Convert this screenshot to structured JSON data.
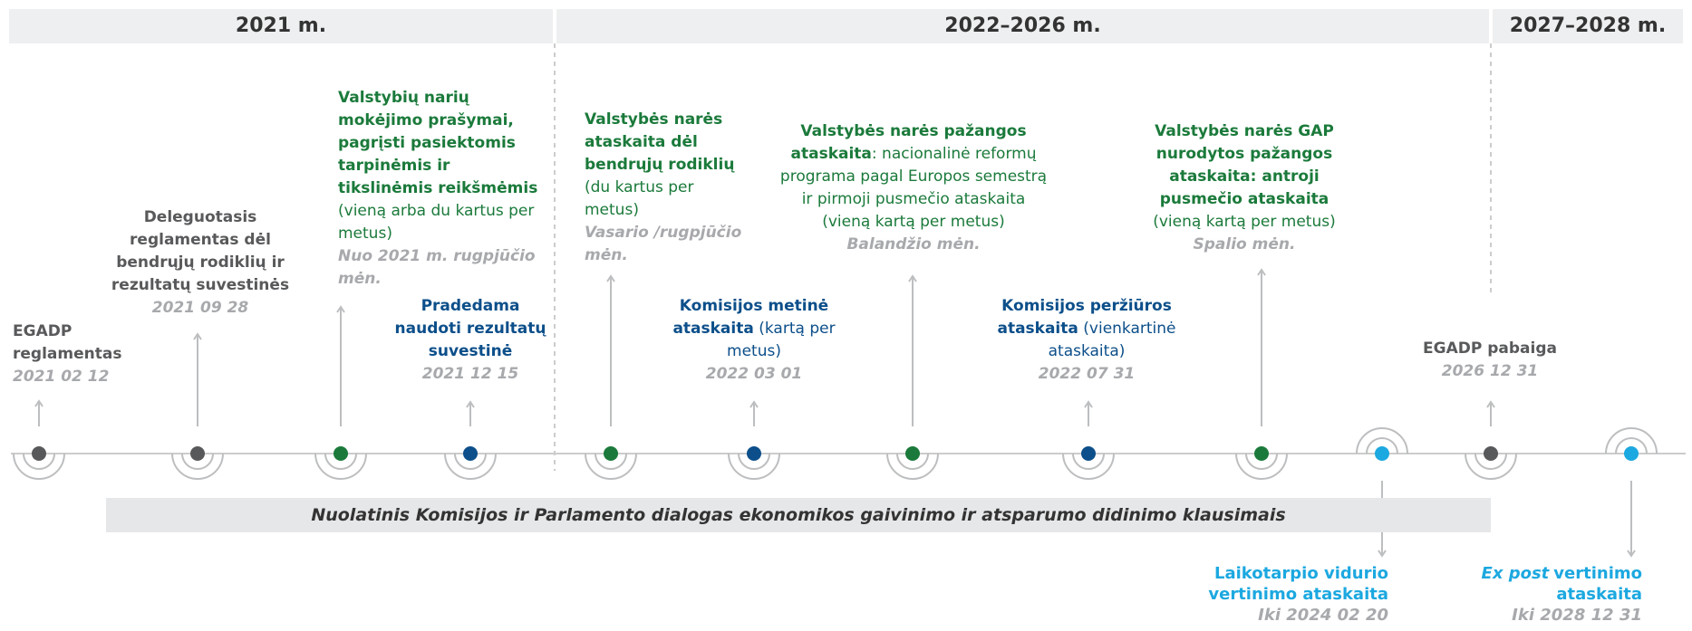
{
  "header": {
    "periods": [
      "2021 m.",
      "2022–2026 m.",
      "2027–2028 m."
    ]
  },
  "dialogue": "Nuolatinis Komisijos ir Parlamento dialogas ekonomikos gaivinimo ir atsparumo didinimo klausimais",
  "events": [
    {
      "title": "EGADP reglamentas",
      "date": "2021 02 12",
      "color": "#58595b"
    },
    {
      "title": "Deleguotasis reglamentas dėl bendrųjų rodiklių ir rezultatų suvestinės",
      "date": "2021 09 28",
      "color": "#58595b"
    },
    {
      "title": "Valstybių narių mokėjimo prašymai, pagrįsti pasiektomis tarpinėmis ir tikslinėmis reikšmėmis",
      "note": "(vieną arba du kartus per metus)",
      "date": "Nuo 2021 m. rugpjūčio mėn.",
      "color": "#1b7a3b"
    },
    {
      "title": "Pradedama naudoti rezultatų suvestinė",
      "date": "2021 12 15",
      "color": "#0c4f8a"
    },
    {
      "title": "Valstybės narės ataskaita dėl bendrųjų rodiklių",
      "note": "(du kartus per metus)",
      "date": "Vasario /rugpjūčio mėn.",
      "color": "#1b7a3b"
    },
    {
      "title": "Komisijos metinė ataskaita",
      "note": "(kartą per metus)",
      "date": "2022 03 01",
      "color": "#0c4f8a"
    },
    {
      "title": "Valstybės narės pažangos ataskaita",
      "note": ": nacionalinė reformų programa pagal Europos semestrą ir pirmoji pusmečio ataskaita (vieną kartą per metus)",
      "date": "Balandžio mėn.",
      "color": "#1b7a3b"
    },
    {
      "title": "Komisijos peržiūros ataskaita",
      "note": "(vienkartinė ataskaita)",
      "date": "2022 07 31",
      "color": "#0c4f8a"
    },
    {
      "title": "Valstybės narės GAP nurodytos pažangos ataskaita: antroji pusmečio ataskaita",
      "note": "(vieną kartą per metus)",
      "date": "Spalio mėn.",
      "color": "#1b7a3b"
    },
    {
      "title": "Laikotarpio vidurio vertinimo ataskaita",
      "date": "Iki 2024 02 20",
      "color": "#1ca8e0"
    },
    {
      "title": "EGADP pabaiga",
      "date": "2026 12 31",
      "color": "#58595b"
    },
    {
      "title_italic": "Ex post",
      "title": "vertinimo ataskaita",
      "date": "Iki 2028 12 31",
      "color": "#1ca8e0"
    }
  ]
}
